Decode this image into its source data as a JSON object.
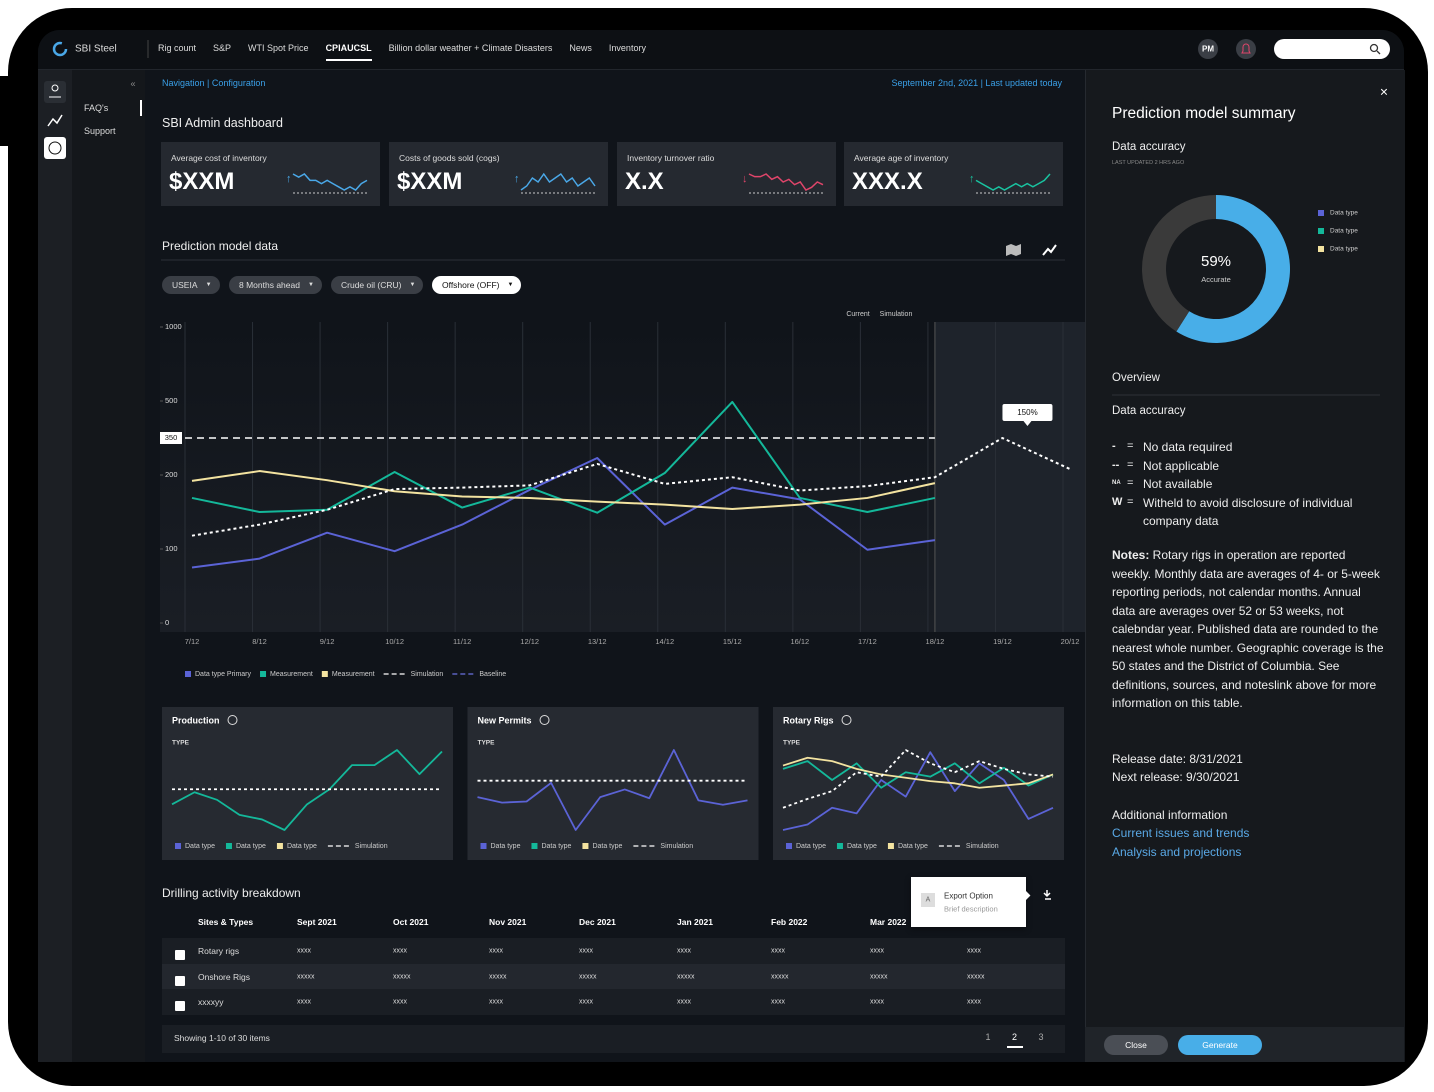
{
  "nav": {
    "brand": "SBI Steel",
    "tabs": [
      "Rig count",
      "S&P",
      "WTI Spot Price",
      "CPIAUCSL",
      "Billion dollar weather + Climate Disasters",
      "News",
      "Inventory"
    ],
    "active_tab": "CPIAUCSL",
    "avatar": "PM"
  },
  "side_nav": [
    "FAQ's",
    "Support"
  ],
  "breadcrumb": "Navigation | Configuration",
  "date": "September 2nd, 2021 | Last updated today",
  "page_title": "SBI Admin dashboard",
  "kpis": [
    {
      "label": "Average cost of inventory",
      "value": "$XXM",
      "arrow": "↑",
      "color": "#4aa8e8",
      "spark": [
        6,
        5,
        6,
        4,
        4,
        3,
        4,
        3,
        2,
        1,
        2,
        1,
        3,
        4
      ]
    },
    {
      "label": "Costs of goods sold (cogs)",
      "value": "$XXM",
      "arrow": "↑",
      "color": "#4aa8e8",
      "spark": [
        1,
        2,
        4,
        3,
        5,
        3,
        4,
        5,
        3,
        4,
        2,
        3,
        4,
        2
      ]
    },
    {
      "label": "Inventory turnover ratio",
      "value": "X.X",
      "arrow": "↓",
      "color": "#e0456a",
      "spark": [
        7,
        6,
        6,
        7,
        5,
        6,
        4,
        5,
        3,
        4,
        1,
        2,
        4,
        3
      ]
    },
    {
      "label": "Average age of inventory",
      "value": "XXX.X",
      "arrow": "↑",
      "color": "#19c3a0",
      "spark": [
        5,
        4,
        3,
        2,
        3,
        2,
        3,
        4,
        3,
        4,
        3,
        4,
        5,
        7
      ]
    }
  ],
  "section_title": "Prediction model data",
  "filters": [
    "USEIA",
    "8 Months ahead",
    "Crude oil (CRU)",
    "Offshore (OFF)"
  ],
  "chart_data": [
    {
      "type": "line",
      "region_labels": [
        "Current",
        "Simulation"
      ],
      "categories": [
        "7/12",
        "8/12",
        "9/12",
        "10/12",
        "11/12",
        "12/12",
        "13/12",
        "14/12",
        "15/12",
        "16/12",
        "17/12",
        "18/12",
        "19/12",
        "20/12"
      ],
      "ylim": [
        0,
        1000
      ],
      "yticks": [
        0,
        100,
        200,
        500,
        1000
      ],
      "reference_line": 350,
      "simulation_start": "18/12",
      "tooltip": "150%",
      "series": [
        {
          "name": "Data type Primary",
          "color": "#5b63d6",
          "values": [
            75,
            87,
            122,
            97,
            133,
            180,
            269,
            133,
            183,
            167,
            99,
            112,
            null,
            null
          ]
        },
        {
          "name": "Measurement",
          "color": "#14b89a",
          "values": [
            169,
            150,
            153,
            212,
            156,
            183,
            149,
            208,
            496,
            169,
            150,
            169,
            null,
            null
          ]
        },
        {
          "name": "Measurement",
          "color": "#f3e3a0",
          "values": [
            192,
            216,
            193,
            178,
            171,
            169,
            164,
            160,
            154,
            160,
            169,
            189,
            null,
            null
          ]
        },
        {
          "name": "Simulation",
          "color": "#ffffff",
          "dash": true,
          "values": [
            118,
            133,
            153,
            181,
            183,
            186,
            245,
            188,
            197,
            179,
            185,
            197,
            350,
            224
          ]
        }
      ],
      "legend": [
        {
          "name": "Data type Primary",
          "color": "#5b63d6",
          "style": "square"
        },
        {
          "name": "Measurement",
          "color": "#14b89a",
          "style": "square"
        },
        {
          "name": "Measurement",
          "color": "#f3e3a0",
          "style": "square"
        },
        {
          "name": "Simulation",
          "color": "#ffffff",
          "style": "dash"
        },
        {
          "name": "Baseline",
          "color": "#6a70e0",
          "style": "dash"
        }
      ]
    },
    {
      "type": "line",
      "title": "Production",
      "subtitle": "TYPE",
      "series": [
        {
          "name": "Data type",
          "color": "#14b89a",
          "values": [
            30,
            38,
            33,
            23,
            20,
            13,
            30,
            40,
            56,
            56,
            66,
            50,
            65
          ]
        },
        {
          "name": "Simulation",
          "color": "#ffffff",
          "dash": true,
          "values": [
            40,
            40,
            40,
            40,
            40,
            40,
            40,
            40,
            40,
            40,
            40,
            40,
            40
          ]
        }
      ],
      "legend": [
        {
          "name": "Data type",
          "color": "#5b63d6",
          "style": "square"
        },
        {
          "name": "Data type",
          "color": "#14b89a",
          "style": "square"
        },
        {
          "name": "Data type",
          "color": "#f3e3a0",
          "style": "square"
        },
        {
          "name": "Simulation",
          "color": "#ffffff",
          "style": "dash"
        }
      ]
    },
    {
      "type": "line",
      "title": "New Permits",
      "subtitle": "TYPE",
      "series": [
        {
          "name": "Data type",
          "color": "#5b63d6",
          "values": [
            45,
            40,
            41,
            58,
            15,
            45,
            52,
            44,
            88,
            42,
            38,
            42
          ]
        },
        {
          "name": "Simulation",
          "color": "#ffffff",
          "dash": true,
          "values": [
            60,
            60,
            60,
            60,
            60,
            60,
            60,
            60,
            60,
            60,
            60,
            60
          ]
        }
      ],
      "legend": [
        {
          "name": "Data type",
          "color": "#5b63d6",
          "style": "square"
        },
        {
          "name": "Data type",
          "color": "#14b89a",
          "style": "square"
        },
        {
          "name": "Data type",
          "color": "#f3e3a0",
          "style": "square"
        },
        {
          "name": "Simulation",
          "color": "#ffffff",
          "style": "dash"
        }
      ]
    },
    {
      "type": "line",
      "title": "Rotary Rigs",
      "subtitle": "TYPE",
      "series": [
        {
          "name": "Data type",
          "color": "#5b63d6",
          "values": [
            10,
            15,
            30,
            25,
            55,
            40,
            80,
            45,
            70,
            55,
            20,
            30
          ]
        },
        {
          "name": "Data type",
          "color": "#14b89a",
          "values": [
            65,
            72,
            55,
            70,
            48,
            62,
            58,
            70,
            52,
            66,
            50,
            60
          ]
        },
        {
          "name": "Data type",
          "color": "#f3e3a0",
          "values": [
            68,
            75,
            72,
            65,
            60,
            57,
            54,
            52,
            48,
            50,
            52,
            60
          ]
        },
        {
          "name": "Simulation",
          "color": "#ffffff",
          "dash": true,
          "values": [
            30,
            38,
            45,
            62,
            58,
            82,
            70,
            62,
            72,
            65,
            60,
            58
          ]
        }
      ],
      "legend": [
        {
          "name": "Data type",
          "color": "#5b63d6",
          "style": "square"
        },
        {
          "name": "Data type",
          "color": "#14b89a",
          "style": "square"
        },
        {
          "name": "Data type",
          "color": "#f3e3a0",
          "style": "square"
        },
        {
          "name": "Simulation",
          "color": "#ffffff",
          "style": "dash"
        }
      ]
    },
    {
      "type": "pie",
      "values": [
        59,
        41
      ],
      "colors": [
        "#48aee8",
        "#3a3a3a"
      ],
      "center_label": "59%",
      "center_sublabel": "Accurate",
      "legend": [
        {
          "name": "Data type",
          "color": "#5b63d6"
        },
        {
          "name": "Data type",
          "color": "#14b89a"
        },
        {
          "name": "Data type",
          "color": "#f3e3a0"
        }
      ]
    }
  ],
  "table": {
    "title": "Drilling activity breakdown",
    "columns": [
      "Sites & Types",
      "Sept 2021",
      "Oct 2021",
      "Nov 2021",
      "Dec 2021",
      "Jan 2021",
      "Feb 2022",
      "Mar 2022",
      null
    ],
    "rows": [
      [
        "Rotary rigs",
        "xxxx",
        "xxxx",
        "xxxx",
        "xxxx",
        "xxxx",
        "xxxx",
        "xxxx",
        "xxxx"
      ],
      [
        "Onshore Rigs",
        "xxxxx",
        "xxxxx",
        "xxxxx",
        "xxxxx",
        "xxxxx",
        "xxxxx",
        "xxxxx",
        "xxxxx"
      ],
      [
        "xxxxyy",
        "xxxx",
        "xxxx",
        "xxxx",
        "xxxx",
        "xxxx",
        "xxxx",
        "xxxx",
        "xxxx"
      ]
    ],
    "footer": "Showing 1-10 of 30 items",
    "pages": [
      1,
      2,
      3
    ],
    "current_page": 2
  },
  "popup": {
    "icon": "A",
    "title": "Export Option",
    "description": "Brief description"
  },
  "panel": {
    "title": "Prediction model summary",
    "section": "Data accuracy",
    "updated": "LAST UPDATED 2 HRS AGO",
    "overview": "Overview",
    "subsection": "Data accuracy",
    "definitions": [
      {
        "symbol": "-",
        "sep": "=",
        "text": "No data required"
      },
      {
        "symbol": "--",
        "sep": "=",
        "text": "Not applicable"
      },
      {
        "symbol": "NA",
        "sep": "=",
        "text": "Not available"
      },
      {
        "symbol": "W",
        "sep": "=",
        "text": "Witheld to avoid disclosure of individual company data"
      }
    ],
    "notes_label": "Notes:",
    "notes": " Rotary rigs in operation are reported weekly. Monthly data are averages of 4- or 5-week reporting periods, not calendar months. Annual data are averages over 52 or 53 weeks, not calebndar year. Published data are rounded to the nearest whole number. Geographic coverage is the 50 states and the District of Columbia. See definitions, sources, and noteslink above for more information on this table.",
    "release": "Release date: 8/31/2021",
    "next_release": "Next release: 9/30/2021",
    "additional": "Additional  information",
    "links": [
      "Current issues and trends",
      "Analysis and projections"
    ],
    "buttons": [
      "Close",
      "Generate"
    ]
  }
}
